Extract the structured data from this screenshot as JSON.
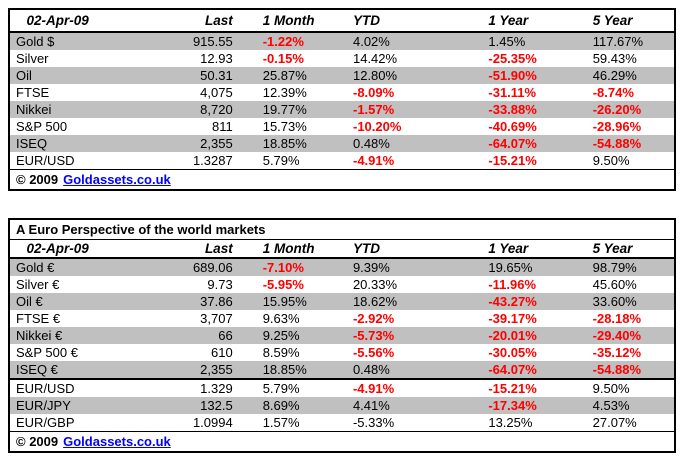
{
  "chart_data": [
    {
      "type": "table",
      "columns": [
        "02-Apr-09",
        "Last",
        "1 Month",
        "YTD",
        "1 Year",
        "5 Year"
      ],
      "rows": [
        {
          "cells": [
            "Gold $",
            "915.55",
            "-1.22%",
            "4.02%",
            "1.45%",
            "117.67%"
          ],
          "red": [
            2
          ]
        },
        {
          "cells": [
            "Silver",
            "12.93",
            "-0.15%",
            "14.42%",
            "-25.35%",
            "59.43%"
          ],
          "red": [
            2,
            4
          ]
        },
        {
          "cells": [
            "Oil",
            "50.31",
            "25.87%",
            "12.80%",
            "-51.90%",
            "46.29%"
          ],
          "red": [
            4
          ]
        },
        {
          "cells": [
            "FTSE",
            "4,075",
            "12.39%",
            "-8.09%",
            "-31.11%",
            "-8.74%"
          ],
          "red": [
            3,
            4,
            5
          ]
        },
        {
          "cells": [
            "Nikkei",
            "8,720",
            "19.77%",
            "-1.57%",
            "-33.88%",
            "-26.20%"
          ],
          "red": [
            3,
            4,
            5
          ]
        },
        {
          "cells": [
            "S&P 500",
            "811",
            "15.73%",
            "-10.20%",
            "-40.69%",
            "-28.96%"
          ],
          "red": [
            3,
            4,
            5
          ]
        },
        {
          "cells": [
            "ISEQ",
            "2,355",
            "18.85%",
            "0.48%",
            "-64.07%",
            "-54.88%"
          ],
          "red": [
            4,
            5
          ]
        },
        {
          "cells": [
            "EUR/USD",
            "1.3287",
            "5.79%",
            "-4.91%",
            "-15.21%",
            "9.50%"
          ],
          "red": [
            3,
            4
          ]
        }
      ],
      "footer": {
        "copyright": "© 2009",
        "link": "Goldassets.co.uk"
      }
    },
    {
      "type": "table",
      "title": "A Euro Perspective of the world markets",
      "columns": [
        "02-Apr-09",
        "Last",
        "1 Month",
        "YTD",
        "1 Year",
        "5 Year"
      ],
      "rows": [
        {
          "cells": [
            "Gold €",
            "689.06",
            "-7.10%",
            "9.39%",
            "19.65%",
            "98.79%"
          ],
          "red": [
            2
          ]
        },
        {
          "cells": [
            "Silver €",
            "9.73",
            "-5.95%",
            "20.33%",
            "-11.96%",
            "45.60%"
          ],
          "red": [
            2,
            4
          ]
        },
        {
          "cells": [
            "Oil €",
            "37.86",
            "15.95%",
            "18.62%",
            "-43.27%",
            "33.60%"
          ],
          "red": [
            4
          ]
        },
        {
          "cells": [
            "FTSE €",
            "3,707",
            "9.63%",
            "-2.92%",
            "-39.17%",
            "-28.18%"
          ],
          "red": [
            3,
            4,
            5
          ]
        },
        {
          "cells": [
            "Nikkei €",
            "66",
            "9.25%",
            "-5.73%",
            "-20.01%",
            "-29.40%"
          ],
          "red": [
            3,
            4,
            5
          ]
        },
        {
          "cells": [
            "S&P 500 €",
            "610",
            "8.59%",
            "-5.56%",
            "-30.05%",
            "-35.12%"
          ],
          "red": [
            3,
            4,
            5
          ]
        },
        {
          "cells": [
            "ISEQ €",
            "2,355",
            "18.85%",
            "0.48%",
            "-64.07%",
            "-54.88%"
          ],
          "red": [
            4,
            5
          ]
        },
        {
          "cells": [
            "EUR/USD",
            "1.329",
            "5.79%",
            "-4.91%",
            "-15.21%",
            "9.50%"
          ],
          "red": [
            3,
            4
          ],
          "thick_top": true
        },
        {
          "cells": [
            "EUR/JPY",
            "132.5",
            "8.69%",
            "4.41%",
            "-17.34%",
            "4.53%"
          ],
          "red": [
            4
          ]
        },
        {
          "cells": [
            "EUR/GBP",
            "1.0994",
            "1.57%",
            "-5.33%",
            "13.25%",
            "27.07%"
          ],
          "red": []
        }
      ],
      "footer": {
        "copyright": "© 2009",
        "link": "Goldassets.co.uk"
      }
    }
  ],
  "colors": {
    "negative_value": "#FF0000",
    "row_stripe": "#C0C0C0",
    "link": "#0000FF",
    "border": "#000000"
  }
}
